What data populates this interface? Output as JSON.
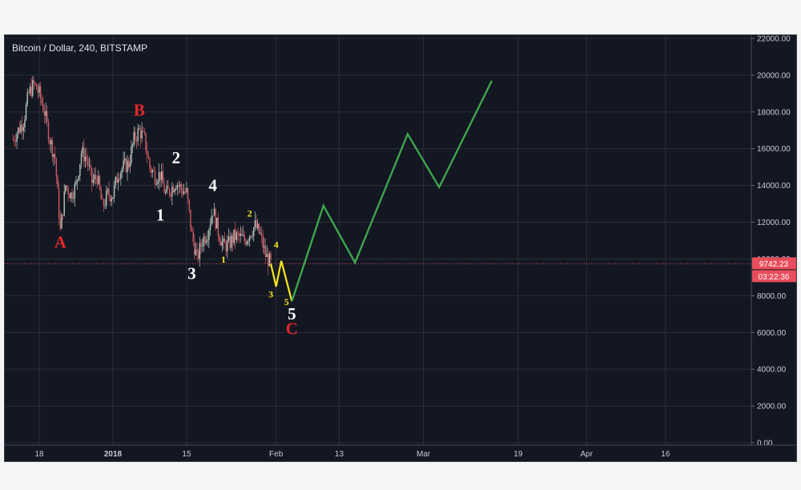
{
  "header": {
    "title": "Bitcoin / Dollar, 240, BITSTAMP"
  },
  "price_badge": {
    "price": "9742.23",
    "countdown": "03:22:36",
    "color": "#e84d5b"
  },
  "colors": {
    "background": "#131722",
    "grid": "#2a2e39",
    "candle_up": "#b6c9bf",
    "candle_down": "#d05b64",
    "price_line": "#e84d5b",
    "projection_yellow": "#f5e61a",
    "projection_green": "#3fa34d",
    "label_red": "#e02a2a",
    "label_white": "#ffffff",
    "label_yellow": "#f5e61a"
  },
  "chart_data": {
    "type": "candlestick",
    "symbol": "Bitcoin / Dollar",
    "interval": "240",
    "exchange": "BITSTAMP",
    "y_axis": {
      "range": [
        0,
        22000
      ],
      "ticks": [
        "0.00",
        "2000.00",
        "4000.00",
        "6000.00",
        "8000.00",
        "10000.00",
        "12000.00",
        "14000.00",
        "16000.00",
        "18000.00",
        "20000.00",
        "22000.00"
      ],
      "position": "right"
    },
    "x_axis": {
      "ticks": [
        {
          "label": "18",
          "date": "2017-12-18"
        },
        {
          "label": "2018",
          "date": "2018-01-01",
          "bold": true
        },
        {
          "label": "15",
          "date": "2018-01-15"
        },
        {
          "label": "Feb",
          "date": "2018-02-01"
        },
        {
          "label": "13",
          "date": "2018-02-13"
        },
        {
          "label": "Mar",
          "date": "2018-03-01"
        },
        {
          "label": "19",
          "date": "2018-03-19"
        },
        {
          "label": "Apr",
          "date": "2018-04-01"
        },
        {
          "label": "16",
          "date": "2018-04-16"
        }
      ]
    },
    "grid": true,
    "current_price": 9742.23,
    "price_path": [
      [
        "2017-12-13",
        16500
      ],
      [
        "2017-12-14",
        17000
      ],
      [
        "2017-12-15",
        17500
      ],
      [
        "2017-12-16",
        19000
      ],
      [
        "2017-12-17",
        19500
      ],
      [
        "2017-12-18",
        19000
      ],
      [
        "2017-12-19",
        18000
      ],
      [
        "2017-12-20",
        16500
      ],
      [
        "2017-12-21",
        15500
      ],
      [
        "2017-12-22",
        11500
      ],
      [
        "2017-12-23",
        14000
      ],
      [
        "2017-12-24",
        13500
      ],
      [
        "2017-12-25",
        14000
      ],
      [
        "2017-12-26",
        15800
      ],
      [
        "2017-12-27",
        15500
      ],
      [
        "2017-12-28",
        14200
      ],
      [
        "2017-12-29",
        14500
      ],
      [
        "2017-12-30",
        12800
      ],
      [
        "2017-12-31",
        13500
      ],
      [
        "2018-01-01",
        13500
      ],
      [
        "2018-01-02",
        14700
      ],
      [
        "2018-01-03",
        15000
      ],
      [
        "2018-01-04",
        15200
      ],
      [
        "2018-01-05",
        16500
      ],
      [
        "2018-01-06",
        17000
      ],
      [
        "2018-01-07",
        16500
      ],
      [
        "2018-01-08",
        15000
      ],
      [
        "2018-01-09",
        14500
      ],
      [
        "2018-01-10",
        14600
      ],
      [
        "2018-01-11",
        13500
      ],
      [
        "2018-01-12",
        13800
      ],
      [
        "2018-01-13",
        14200
      ],
      [
        "2018-01-14",
        13800
      ],
      [
        "2018-01-15",
        13600
      ],
      [
        "2018-01-16",
        11300
      ],
      [
        "2018-01-17",
        10000
      ],
      [
        "2018-01-18",
        11000
      ],
      [
        "2018-01-19",
        11500
      ],
      [
        "2018-01-20",
        12700
      ],
      [
        "2018-01-21",
        11500
      ],
      [
        "2018-01-22",
        10700
      ],
      [
        "2018-01-23",
        10800
      ],
      [
        "2018-01-24",
        11200
      ],
      [
        "2018-01-25",
        11200
      ],
      [
        "2018-01-26",
        11000
      ],
      [
        "2018-01-27",
        11400
      ],
      [
        "2018-01-28",
        11800
      ],
      [
        "2018-01-29",
        11300
      ],
      [
        "2018-01-30",
        10200
      ],
      [
        "2018-01-31",
        9742
      ]
    ],
    "projection_yellow": [
      [
        "2018-01-31",
        9742
      ],
      [
        "2018-02-01",
        8500
      ],
      [
        "2018-02-02",
        9900
      ],
      [
        "2018-02-04",
        7700
      ]
    ],
    "projection_green": [
      [
        "2018-02-04",
        7700
      ],
      [
        "2018-02-10",
        12900
      ],
      [
        "2018-02-16",
        9800
      ],
      [
        "2018-02-26",
        16800
      ],
      [
        "2018-03-04",
        13900
      ],
      [
        "2018-03-14",
        19700
      ]
    ],
    "annotations": [
      {
        "text": "A",
        "date": "2017-12-22",
        "price": 10600,
        "color": "red"
      },
      {
        "text": "B",
        "date": "2018-01-06",
        "price": 17800,
        "color": "red"
      },
      {
        "text": "C",
        "date": "2018-02-04",
        "price": 5900,
        "color": "red"
      },
      {
        "text": "1",
        "date": "2018-01-10",
        "price": 12100,
        "color": "white"
      },
      {
        "text": "2",
        "date": "2018-01-13",
        "price": 15200,
        "color": "white"
      },
      {
        "text": "3",
        "date": "2018-01-16",
        "price": 8900,
        "color": "white"
      },
      {
        "text": "4",
        "date": "2018-01-20",
        "price": 13700,
        "color": "white"
      },
      {
        "text": "5",
        "date": "2018-02-04",
        "price": 6700,
        "color": "white"
      },
      {
        "text": "1",
        "date": "2018-01-22",
        "price": 9800,
        "color": "yellow"
      },
      {
        "text": "2",
        "date": "2018-01-27",
        "price": 12300,
        "color": "yellow"
      },
      {
        "text": "3",
        "date": "2018-01-31",
        "price": 7900,
        "color": "yellow"
      },
      {
        "text": "4",
        "date": "2018-02-01",
        "price": 10600,
        "color": "yellow"
      },
      {
        "text": "5",
        "date": "2018-02-03",
        "price": 7500,
        "color": "yellow"
      }
    ]
  }
}
